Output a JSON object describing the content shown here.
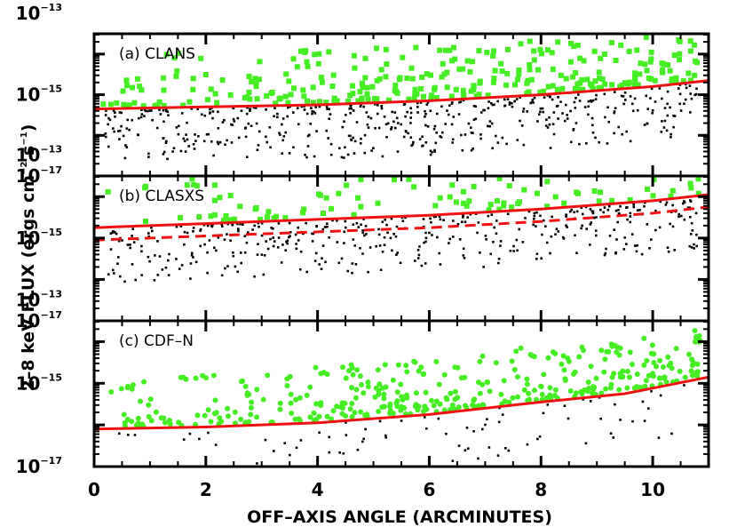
{
  "chart_data": {
    "type": "scatter",
    "ylabel": {
      "main": "2–8 keV FLUX (ergs cm",
      "sup1": "−2",
      "mid": " s",
      "sup2": "−1",
      "end": ")"
    },
    "xlabel": "OFF–AXIS ANGLE (ARCMINUTES)",
    "xlim": [
      0,
      11
    ],
    "xticks": [
      0,
      2,
      4,
      6,
      8,
      10
    ],
    "ylim": [
      -17,
      -13.5
    ],
    "yscale": "log",
    "yticks": [
      {
        "value": -13,
        "base": "10",
        "exp": "−13"
      },
      {
        "value": -15,
        "base": "10",
        "exp": "−15"
      },
      {
        "value": -17,
        "base": "10",
        "exp": "−17"
      }
    ],
    "colors": {
      "detected": "#44ee22",
      "undetected": "#000000",
      "limit": "#ee1111"
    },
    "panels": [
      {
        "label": "(a) CLANS",
        "marker": "square",
        "limit_solid": [
          [
            0,
            -15.35
          ],
          [
            2,
            -15.3
          ],
          [
            4,
            -15.25
          ],
          [
            6,
            -15.15
          ],
          [
            8,
            -15.0
          ],
          [
            10,
            -14.8
          ],
          [
            11,
            -14.65
          ]
        ],
        "limit_dashed": [],
        "detected_seed": 11,
        "detected_count": 300,
        "undetected_seed": 21,
        "undetected_count": 480
      },
      {
        "label": "(b) CLASXS",
        "marker": "square",
        "limit_solid": [
          [
            0,
            -14.75
          ],
          [
            2,
            -14.65
          ],
          [
            4,
            -14.55
          ],
          [
            6,
            -14.45
          ],
          [
            8,
            -14.3
          ],
          [
            10,
            -14.1
          ],
          [
            11,
            -13.95
          ]
        ],
        "limit_dashed": [
          [
            0,
            -15.05
          ],
          [
            2,
            -14.95
          ],
          [
            4,
            -14.85
          ],
          [
            6,
            -14.75
          ],
          [
            8,
            -14.6
          ],
          [
            10,
            -14.4
          ],
          [
            11,
            -14.25
          ]
        ],
        "detected_seed": 31,
        "detected_count": 120,
        "undetected_seed": 41,
        "undetected_count": 420
      },
      {
        "label": "(c) CDF–N",
        "marker": "circle",
        "limit_solid": [
          [
            0,
            -16.1
          ],
          [
            2,
            -16.05
          ],
          [
            4,
            -15.95
          ],
          [
            6,
            -15.75
          ],
          [
            8,
            -15.45
          ],
          [
            9.5,
            -15.25
          ],
          [
            11,
            -14.85
          ]
        ],
        "limit_dashed": [],
        "detected_seed": 51,
        "detected_count": 380,
        "undetected_seed": 61,
        "undetected_count": 90
      }
    ]
  }
}
